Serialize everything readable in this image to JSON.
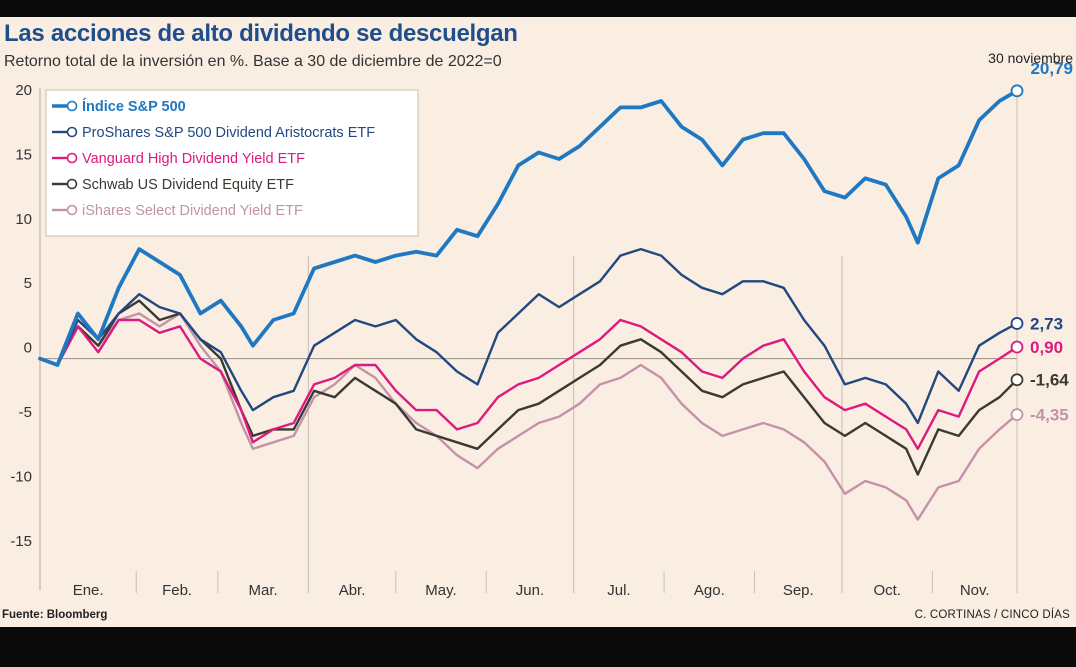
{
  "title": "Las acciones de alto dividendo se descuelgan",
  "subtitle": "Retorno total de la inversión en %. Base a 30 de diciembre de 2022=0",
  "source": "Fuente: Bloomberg",
  "credit": "C. CORTINAS / CINCO DÍAS",
  "end_date_label": "30 noviembre",
  "colors": {
    "sp500": "#1f78c1",
    "proshares": "#22497f",
    "vanguard": "#dc1a7f",
    "schwab": "#3a3a33",
    "ishares": "#c392aa",
    "background": "#faeee3",
    "frame": "#0a0a0a"
  },
  "chart_data": {
    "type": "line",
    "title": "Las acciones de alto dividendo se descuelgan",
    "subtitle": "Retorno total de la inversión en %. Base a 30 de diciembre de 2022=0",
    "x_labels": [
      "Ene.",
      "Feb.",
      "Mar.",
      "Abr.",
      "May.",
      "Jun.",
      "Jul.",
      "Ago.",
      "Sep.",
      "Oct.",
      "Nov."
    ],
    "x_range": [
      "2022-12-30",
      "2023-11-30"
    ],
    "ylim": [
      -18,
      22
    ],
    "yticks": [
      20,
      15,
      10,
      5,
      0,
      -5,
      -10,
      -15
    ],
    "ytick_labels": [
      "20",
      "15",
      "10",
      "5",
      "0",
      "-5",
      "-10",
      "-15"
    ],
    "grid": "month separators",
    "legend_position": "top-left",
    "series": [
      {
        "key": "sp500",
        "name": "Índice S&P 500",
        "end_label": "20,79",
        "end_value": 20.79,
        "points": [
          [
            "2022-12-30",
            0
          ],
          [
            "2023-01-05",
            -0.5
          ],
          [
            "2023-01-12",
            3.5
          ],
          [
            "2023-01-19",
            1.5
          ],
          [
            "2023-01-26",
            5.5
          ],
          [
            "2023-02-02",
            8.5
          ],
          [
            "2023-02-09",
            7.5
          ],
          [
            "2023-02-16",
            6.5
          ],
          [
            "2023-02-23",
            3.5
          ],
          [
            "2023-03-02",
            4.5
          ],
          [
            "2023-03-09",
            2.5
          ],
          [
            "2023-03-13",
            1.0
          ],
          [
            "2023-03-20",
            3.0
          ],
          [
            "2023-03-27",
            3.5
          ],
          [
            "2023-04-03",
            7.0
          ],
          [
            "2023-04-10",
            7.5
          ],
          [
            "2023-04-17",
            8.0
          ],
          [
            "2023-04-24",
            7.5
          ],
          [
            "2023-05-01",
            8.0
          ],
          [
            "2023-05-08",
            8.3
          ],
          [
            "2023-05-15",
            8.0
          ],
          [
            "2023-05-22",
            10.0
          ],
          [
            "2023-05-29",
            9.5
          ],
          [
            "2023-06-05",
            12.0
          ],
          [
            "2023-06-12",
            15.0
          ],
          [
            "2023-06-19",
            16.0
          ],
          [
            "2023-06-26",
            15.5
          ],
          [
            "2023-07-03",
            16.5
          ],
          [
            "2023-07-10",
            18.0
          ],
          [
            "2023-07-17",
            19.5
          ],
          [
            "2023-07-24",
            19.5
          ],
          [
            "2023-07-31",
            20.0
          ],
          [
            "2023-08-07",
            18.0
          ],
          [
            "2023-08-14",
            17.0
          ],
          [
            "2023-08-21",
            15.0
          ],
          [
            "2023-08-28",
            17.0
          ],
          [
            "2023-09-04",
            17.5
          ],
          [
            "2023-09-11",
            17.5
          ],
          [
            "2023-09-18",
            15.5
          ],
          [
            "2023-09-25",
            13.0
          ],
          [
            "2023-10-02",
            12.5
          ],
          [
            "2023-10-09",
            14.0
          ],
          [
            "2023-10-16",
            13.5
          ],
          [
            "2023-10-23",
            11.0
          ],
          [
            "2023-10-27",
            9.0
          ],
          [
            "2023-11-03",
            14.0
          ],
          [
            "2023-11-10",
            15.0
          ],
          [
            "2023-11-17",
            18.5
          ],
          [
            "2023-11-24",
            20.0
          ],
          [
            "2023-11-30",
            20.79
          ]
        ]
      },
      {
        "key": "proshares",
        "name": "ProShares S&P 500 Dividend Aristocrats ETF",
        "end_label": "2,73",
        "end_value": 2.73,
        "points": [
          [
            "2022-12-30",
            0
          ],
          [
            "2023-01-05",
            -0.5
          ],
          [
            "2023-01-12",
            3.0
          ],
          [
            "2023-01-19",
            1.5
          ],
          [
            "2023-01-26",
            3.5
          ],
          [
            "2023-02-02",
            5.0
          ],
          [
            "2023-02-09",
            4.0
          ],
          [
            "2023-02-16",
            3.5
          ],
          [
            "2023-02-23",
            1.5
          ],
          [
            "2023-03-02",
            0.5
          ],
          [
            "2023-03-09",
            -2.5
          ],
          [
            "2023-03-13",
            -4.0
          ],
          [
            "2023-03-20",
            -3.0
          ],
          [
            "2023-03-27",
            -2.5
          ],
          [
            "2023-04-03",
            1.0
          ],
          [
            "2023-04-10",
            2.0
          ],
          [
            "2023-04-17",
            3.0
          ],
          [
            "2023-04-24",
            2.5
          ],
          [
            "2023-05-01",
            3.0
          ],
          [
            "2023-05-08",
            1.5
          ],
          [
            "2023-05-15",
            0.5
          ],
          [
            "2023-05-22",
            -1.0
          ],
          [
            "2023-05-29",
            -2.0
          ],
          [
            "2023-06-05",
            2.0
          ],
          [
            "2023-06-12",
            3.5
          ],
          [
            "2023-06-19",
            5.0
          ],
          [
            "2023-06-26",
            4.0
          ],
          [
            "2023-07-03",
            5.0
          ],
          [
            "2023-07-10",
            6.0
          ],
          [
            "2023-07-17",
            8.0
          ],
          [
            "2023-07-24",
            8.5
          ],
          [
            "2023-07-31",
            8.0
          ],
          [
            "2023-08-07",
            6.5
          ],
          [
            "2023-08-14",
            5.5
          ],
          [
            "2023-08-21",
            5.0
          ],
          [
            "2023-08-28",
            6.0
          ],
          [
            "2023-09-04",
            6.0
          ],
          [
            "2023-09-11",
            5.5
          ],
          [
            "2023-09-18",
            3.0
          ],
          [
            "2023-09-25",
            1.0
          ],
          [
            "2023-10-02",
            -2.0
          ],
          [
            "2023-10-09",
            -1.5
          ],
          [
            "2023-10-16",
            -2.0
          ],
          [
            "2023-10-23",
            -3.5
          ],
          [
            "2023-10-27",
            -5.0
          ],
          [
            "2023-11-03",
            -1.0
          ],
          [
            "2023-11-10",
            -2.5
          ],
          [
            "2023-11-17",
            1.0
          ],
          [
            "2023-11-24",
            2.0
          ],
          [
            "2023-11-30",
            2.73
          ]
        ]
      },
      {
        "key": "vanguard",
        "name": "Vanguard High Dividend Yield ETF",
        "end_label": "0,90",
        "end_value": 0.9,
        "points": [
          [
            "2022-12-30",
            0
          ],
          [
            "2023-01-05",
            -0.5
          ],
          [
            "2023-01-12",
            2.5
          ],
          [
            "2023-01-19",
            0.5
          ],
          [
            "2023-01-26",
            3.0
          ],
          [
            "2023-02-02",
            3.0
          ],
          [
            "2023-02-09",
            2.0
          ],
          [
            "2023-02-16",
            2.5
          ],
          [
            "2023-02-23",
            0.0
          ],
          [
            "2023-03-02",
            -1.0
          ],
          [
            "2023-03-09",
            -4.0
          ],
          [
            "2023-03-13",
            -6.5
          ],
          [
            "2023-03-20",
            -5.5
          ],
          [
            "2023-03-27",
            -5.0
          ],
          [
            "2023-04-03",
            -2.0
          ],
          [
            "2023-04-10",
            -1.5
          ],
          [
            "2023-04-17",
            -0.5
          ],
          [
            "2023-04-24",
            -0.5
          ],
          [
            "2023-05-01",
            -2.5
          ],
          [
            "2023-05-08",
            -4.0
          ],
          [
            "2023-05-15",
            -4.0
          ],
          [
            "2023-05-22",
            -5.5
          ],
          [
            "2023-05-29",
            -5.0
          ],
          [
            "2023-06-05",
            -3.0
          ],
          [
            "2023-06-12",
            -2.0
          ],
          [
            "2023-06-19",
            -1.5
          ],
          [
            "2023-06-26",
            -0.5
          ],
          [
            "2023-07-03",
            0.5
          ],
          [
            "2023-07-10",
            1.5
          ],
          [
            "2023-07-17",
            3.0
          ],
          [
            "2023-07-24",
            2.5
          ],
          [
            "2023-07-31",
            1.5
          ],
          [
            "2023-08-07",
            0.5
          ],
          [
            "2023-08-14",
            -1.0
          ],
          [
            "2023-08-21",
            -1.5
          ],
          [
            "2023-08-28",
            0.0
          ],
          [
            "2023-09-04",
            1.0
          ],
          [
            "2023-09-11",
            1.5
          ],
          [
            "2023-09-18",
            -1.0
          ],
          [
            "2023-09-25",
            -3.0
          ],
          [
            "2023-10-02",
            -4.0
          ],
          [
            "2023-10-09",
            -3.5
          ],
          [
            "2023-10-16",
            -4.5
          ],
          [
            "2023-10-23",
            -5.5
          ],
          [
            "2023-10-27",
            -7.0
          ],
          [
            "2023-11-03",
            -4.0
          ],
          [
            "2023-11-10",
            -4.5
          ],
          [
            "2023-11-17",
            -1.0
          ],
          [
            "2023-11-24",
            0.0
          ],
          [
            "2023-11-30",
            0.9
          ]
        ]
      },
      {
        "key": "schwab",
        "name": "Schwab US Dividend Equity ETF",
        "end_label": "-1,64",
        "end_value": -1.64,
        "points": [
          [
            "2022-12-30",
            0
          ],
          [
            "2023-01-05",
            -0.5
          ],
          [
            "2023-01-12",
            2.5
          ],
          [
            "2023-01-19",
            1.0
          ],
          [
            "2023-01-26",
            3.5
          ],
          [
            "2023-02-02",
            4.5
          ],
          [
            "2023-02-09",
            3.0
          ],
          [
            "2023-02-16",
            3.5
          ],
          [
            "2023-02-23",
            1.5
          ],
          [
            "2023-03-02",
            0.0
          ],
          [
            "2023-03-09",
            -4.0
          ],
          [
            "2023-03-13",
            -6.0
          ],
          [
            "2023-03-20",
            -5.5
          ],
          [
            "2023-03-27",
            -5.5
          ],
          [
            "2023-04-03",
            -2.5
          ],
          [
            "2023-04-10",
            -3.0
          ],
          [
            "2023-04-17",
            -1.5
          ],
          [
            "2023-04-24",
            -2.5
          ],
          [
            "2023-05-01",
            -3.5
          ],
          [
            "2023-05-08",
            -5.5
          ],
          [
            "2023-05-15",
            -6.0
          ],
          [
            "2023-05-22",
            -6.5
          ],
          [
            "2023-05-29",
            -7.0
          ],
          [
            "2023-06-05",
            -5.5
          ],
          [
            "2023-06-12",
            -4.0
          ],
          [
            "2023-06-19",
            -3.5
          ],
          [
            "2023-06-26",
            -2.5
          ],
          [
            "2023-07-03",
            -1.5
          ],
          [
            "2023-07-10",
            -0.5
          ],
          [
            "2023-07-17",
            1.0
          ],
          [
            "2023-07-24",
            1.5
          ],
          [
            "2023-07-31",
            0.5
          ],
          [
            "2023-08-07",
            -1.0
          ],
          [
            "2023-08-14",
            -2.5
          ],
          [
            "2023-08-21",
            -3.0
          ],
          [
            "2023-08-28",
            -2.0
          ],
          [
            "2023-09-04",
            -1.5
          ],
          [
            "2023-09-11",
            -1.0
          ],
          [
            "2023-09-18",
            -3.0
          ],
          [
            "2023-09-25",
            -5.0
          ],
          [
            "2023-10-02",
            -6.0
          ],
          [
            "2023-10-09",
            -5.0
          ],
          [
            "2023-10-16",
            -6.0
          ],
          [
            "2023-10-23",
            -7.0
          ],
          [
            "2023-10-27",
            -9.0
          ],
          [
            "2023-11-03",
            -5.5
          ],
          [
            "2023-11-10",
            -6.0
          ],
          [
            "2023-11-17",
            -4.0
          ],
          [
            "2023-11-24",
            -3.0
          ],
          [
            "2023-11-30",
            -1.64
          ]
        ]
      },
      {
        "key": "ishares",
        "name": "iShares Select Dividend Yield ETF",
        "end_label": "-4,35",
        "end_value": -4.35,
        "points": [
          [
            "2022-12-30",
            0
          ],
          [
            "2023-01-05",
            -0.5
          ],
          [
            "2023-01-12",
            2.5
          ],
          [
            "2023-01-19",
            1.0
          ],
          [
            "2023-01-26",
            3.0
          ],
          [
            "2023-02-02",
            3.5
          ],
          [
            "2023-02-09",
            2.5
          ],
          [
            "2023-02-16",
            3.5
          ],
          [
            "2023-02-23",
            1.0
          ],
          [
            "2023-03-02",
            -1.0
          ],
          [
            "2023-03-09",
            -5.0
          ],
          [
            "2023-03-13",
            -7.0
          ],
          [
            "2023-03-20",
            -6.5
          ],
          [
            "2023-03-27",
            -6.0
          ],
          [
            "2023-04-03",
            -3.0
          ],
          [
            "2023-04-10",
            -2.0
          ],
          [
            "2023-04-17",
            -0.5
          ],
          [
            "2023-04-24",
            -1.5
          ],
          [
            "2023-05-01",
            -3.5
          ],
          [
            "2023-05-08",
            -5.0
          ],
          [
            "2023-05-15",
            -6.0
          ],
          [
            "2023-05-22",
            -7.5
          ],
          [
            "2023-05-29",
            -8.5
          ],
          [
            "2023-06-05",
            -7.0
          ],
          [
            "2023-06-12",
            -6.0
          ],
          [
            "2023-06-19",
            -5.0
          ],
          [
            "2023-06-26",
            -4.5
          ],
          [
            "2023-07-03",
            -3.5
          ],
          [
            "2023-07-10",
            -2.0
          ],
          [
            "2023-07-17",
            -1.5
          ],
          [
            "2023-07-24",
            -0.5
          ],
          [
            "2023-07-31",
            -1.5
          ],
          [
            "2023-08-07",
            -3.5
          ],
          [
            "2023-08-14",
            -5.0
          ],
          [
            "2023-08-21",
            -6.0
          ],
          [
            "2023-08-28",
            -5.5
          ],
          [
            "2023-09-04",
            -5.0
          ],
          [
            "2023-09-11",
            -5.5
          ],
          [
            "2023-09-18",
            -6.5
          ],
          [
            "2023-09-25",
            -8.0
          ],
          [
            "2023-10-02",
            -10.5
          ],
          [
            "2023-10-09",
            -9.5
          ],
          [
            "2023-10-16",
            -10.0
          ],
          [
            "2023-10-23",
            -11.0
          ],
          [
            "2023-10-27",
            -12.5
          ],
          [
            "2023-11-03",
            -10.0
          ],
          [
            "2023-11-10",
            -9.5
          ],
          [
            "2023-11-17",
            -7.0
          ],
          [
            "2023-11-24",
            -5.5
          ],
          [
            "2023-11-30",
            -4.35
          ]
        ]
      }
    ]
  }
}
